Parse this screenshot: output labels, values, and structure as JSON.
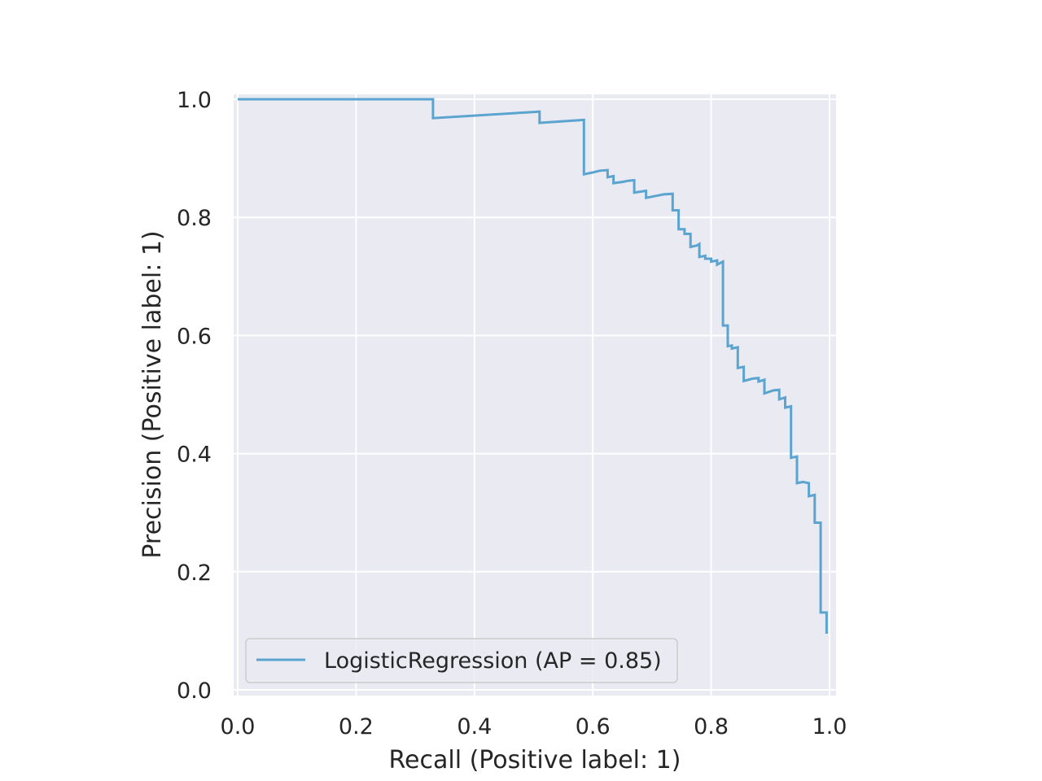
{
  "colors": {
    "plot_background": "#EAEAF2",
    "grid": "#FFFFFF",
    "series": "#5BA4CF",
    "text": "#262626",
    "legend_border": "#CCCCCC"
  },
  "chart_data": {
    "type": "line",
    "title": "",
    "xlabel": "Recall (Positive label: 1)",
    "ylabel": "Precision (Positive label: 1)",
    "xlim": [
      0.0,
      1.0
    ],
    "ylim": [
      0.0,
      1.0
    ],
    "xticks": [
      "0.0",
      "0.2",
      "0.4",
      "0.6",
      "0.8",
      "1.0"
    ],
    "yticks": [
      "0.0",
      "0.2",
      "0.4",
      "0.6",
      "0.8",
      "1.0"
    ],
    "grid": true,
    "legend_position": "lower-left",
    "drawstyle": "steps-post",
    "series": [
      {
        "name": "LogisticRegression (AP = 0.85)",
        "points": [
          [
            0.0,
            1.0
          ],
          [
            0.33,
            1.0
          ],
          [
            0.33,
            0.968
          ],
          [
            0.51,
            0.979
          ],
          [
            0.51,
            0.96
          ],
          [
            0.585,
            0.965
          ],
          [
            0.585,
            0.873
          ],
          [
            0.6,
            0.876
          ],
          [
            0.612,
            0.879
          ],
          [
            0.625,
            0.88
          ],
          [
            0.625,
            0.868
          ],
          [
            0.635,
            0.87
          ],
          [
            0.635,
            0.858
          ],
          [
            0.65,
            0.86
          ],
          [
            0.66,
            0.862
          ],
          [
            0.67,
            0.863
          ],
          [
            0.67,
            0.842
          ],
          [
            0.69,
            0.845
          ],
          [
            0.69,
            0.833
          ],
          [
            0.71,
            0.837
          ],
          [
            0.72,
            0.839
          ],
          [
            0.735,
            0.84
          ],
          [
            0.735,
            0.812
          ],
          [
            0.745,
            0.812
          ],
          [
            0.745,
            0.78
          ],
          [
            0.755,
            0.78
          ],
          [
            0.755,
            0.772
          ],
          [
            0.765,
            0.772
          ],
          [
            0.765,
            0.75
          ],
          [
            0.775,
            0.752
          ],
          [
            0.78,
            0.755
          ],
          [
            0.78,
            0.733
          ],
          [
            0.79,
            0.735
          ],
          [
            0.79,
            0.73
          ],
          [
            0.8,
            0.73
          ],
          [
            0.8,
            0.725
          ],
          [
            0.81,
            0.727
          ],
          [
            0.81,
            0.72
          ],
          [
            0.82,
            0.725
          ],
          [
            0.82,
            0.617
          ],
          [
            0.828,
            0.617
          ],
          [
            0.828,
            0.582
          ],
          [
            0.835,
            0.583
          ],
          [
            0.835,
            0.578
          ],
          [
            0.845,
            0.58
          ],
          [
            0.845,
            0.545
          ],
          [
            0.855,
            0.547
          ],
          [
            0.855,
            0.523
          ],
          [
            0.87,
            0.527
          ],
          [
            0.88,
            0.528
          ],
          [
            0.88,
            0.522
          ],
          [
            0.89,
            0.525
          ],
          [
            0.89,
            0.502
          ],
          [
            0.905,
            0.507
          ],
          [
            0.915,
            0.508
          ],
          [
            0.915,
            0.492
          ],
          [
            0.925,
            0.495
          ],
          [
            0.925,
            0.478
          ],
          [
            0.935,
            0.48
          ],
          [
            0.935,
            0.393
          ],
          [
            0.945,
            0.395
          ],
          [
            0.945,
            0.35
          ],
          [
            0.955,
            0.352
          ],
          [
            0.965,
            0.35
          ],
          [
            0.965,
            0.328
          ],
          [
            0.975,
            0.33
          ],
          [
            0.975,
            0.283
          ],
          [
            0.985,
            0.283
          ],
          [
            0.985,
            0.131
          ],
          [
            0.995,
            0.131
          ],
          [
            0.995,
            0.095
          ]
        ]
      }
    ]
  }
}
